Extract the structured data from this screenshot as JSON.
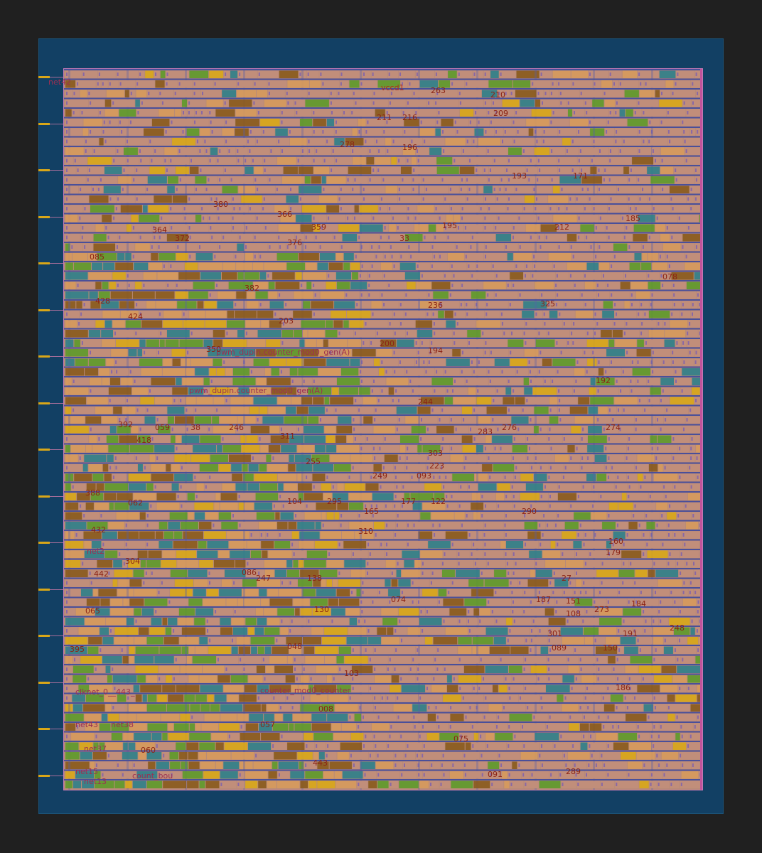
{
  "layout_view": {
    "colors": {
      "background": "#202020",
      "die": "#124064",
      "core": "#b88a78",
      "rail_blue": "#4a4f9a",
      "cell_orange": "#d79a5c",
      "cell_brown": "#8a5a1c",
      "cell_green": "#5e9a2a",
      "cell_teal": "#2f7f8a",
      "cell_gold": "#d9a718",
      "pin": "#d9a718",
      "label_red": "#8c2314"
    },
    "pins": [
      {
        "name": "net42"
      },
      {
        "name": "pin-1"
      },
      {
        "name": "pin-2"
      },
      {
        "name": "pin-3"
      },
      {
        "name": "pin-4"
      },
      {
        "name": "pin-5"
      },
      {
        "name": "pin-6"
      },
      {
        "name": "pin-7"
      },
      {
        "name": "pin-8"
      },
      {
        "name": "pin-9"
      },
      {
        "name": "pin-10"
      },
      {
        "name": "pin-11"
      },
      {
        "name": "pin-12"
      },
      {
        "name": "pin-13"
      },
      {
        "name": "pin-14"
      },
      {
        "name": "pin-15"
      }
    ],
    "labels": {
      "net42": "net42",
      "vccd1": "vccd1",
      "n263": "263",
      "n210": "210",
      "n209": "209",
      "n211": "211",
      "n216": "216",
      "n278": "278",
      "n196": "196",
      "n193": "193",
      "n171": "171",
      "n380": "380",
      "n366": "366",
      "n195": "195",
      "n212": "212",
      "n185": "185",
      "n364": "364",
      "n359": "359",
      "n372": "372",
      "n376": "376",
      "n33": "33",
      "n085": "085",
      "n382": "382",
      "n236": "236",
      "n325": "325",
      "n428": "428",
      "n424": "424",
      "n203": "203",
      "n200": "200",
      "n194": "194",
      "n078": "078",
      "pwm_dbl": "pwm_dupin.counter_mod0_gen(A)",
      "pwm_cnt": "pwm_dupin.counter_mod0_gen(A)",
      "n350": "350",
      "n244": "244",
      "n192": "192",
      "n392": "392",
      "n059": "059",
      "n38": "38",
      "n246": "246",
      "n283": "283",
      "n276": "276",
      "n274": "274",
      "n418": "418",
      "n311": "311",
      "n303": "303",
      "n255": "255",
      "n249": "249",
      "n223": "223",
      "n093": "093",
      "n388": "388",
      "n062": "062",
      "n104": "104",
      "n295": "295",
      "n165": "165",
      "n177": "177",
      "n122": "122",
      "n290": "290",
      "n432": "432",
      "n310": "310",
      "n160": "160",
      "n179": "179",
      "net2": "net2",
      "n304": "304",
      "n442": "442",
      "n086": "086",
      "n247": "247",
      "n138": "138",
      "n27": "27",
      "n074": "074",
      "n187": "187",
      "n151": "151",
      "n273": "273",
      "n184": "184",
      "n065": "065",
      "n130": "130",
      "n108": "108",
      "n301": "301",
      "n191": "191",
      "n248": "248",
      "n395": "395",
      "n048": "048",
      "n089": "089",
      "n150": "150",
      "n103": "103",
      "clknet": "clknet_0__443_",
      "counter": "counter_mod0_counter",
      "n186": "186",
      "n008": "008",
      "net43": "net43",
      "net38": "net38",
      "n057": "057",
      "n075": "075",
      "net37": "net37",
      "n060": "060",
      "n443": "443",
      "net15": "net15",
      "n091": "091",
      "n289": "289",
      "net13": "net13",
      "count": "count_bou"
    }
  }
}
